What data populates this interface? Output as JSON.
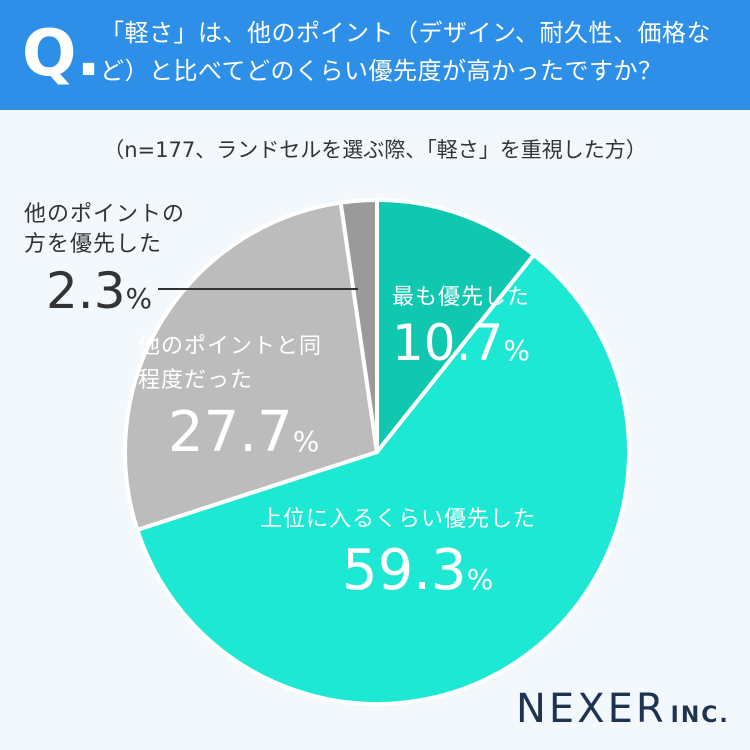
{
  "header": {
    "q_mark": "Q.",
    "question": "「軽さ」は、他のポイント（デザイン、耐久性、価格など）と比べてどのくらい優先度が高かったですか？"
  },
  "note": "（n=177、ランドセルを選ぶ際、「軽さ」を重視した方）",
  "brand": {
    "name": "NEXER",
    "suffix": "INC."
  },
  "unit": "%",
  "colors": {
    "header": "#2d8fe8",
    "background": "#f3f8fd",
    "slice_top": "#10c7b0",
    "slice_high": "#1de8d4",
    "slice_same": "#bcbcbc",
    "slice_other": "#9a9a9a",
    "brand": "#1e3352"
  },
  "chart_data": {
    "type": "pie",
    "start_angle": "12 o'clock",
    "direction": "clockwise",
    "slices": [
      {
        "label": "最も優先した",
        "value": 10.7,
        "value_text": "10.7",
        "color": "#10c7b0"
      },
      {
        "label": "上位に入るくらい優先した",
        "value": 59.3,
        "value_text": "59.3",
        "color": "#1de8d4"
      },
      {
        "label": "他のポイントと同程度だった",
        "value": 27.7,
        "value_text": "27.7",
        "color": "#bcbcbc"
      },
      {
        "label": "他のポイントの方を優先した",
        "value": 2.3,
        "value_text": "2.3",
        "color": "#9a9a9a"
      }
    ]
  }
}
